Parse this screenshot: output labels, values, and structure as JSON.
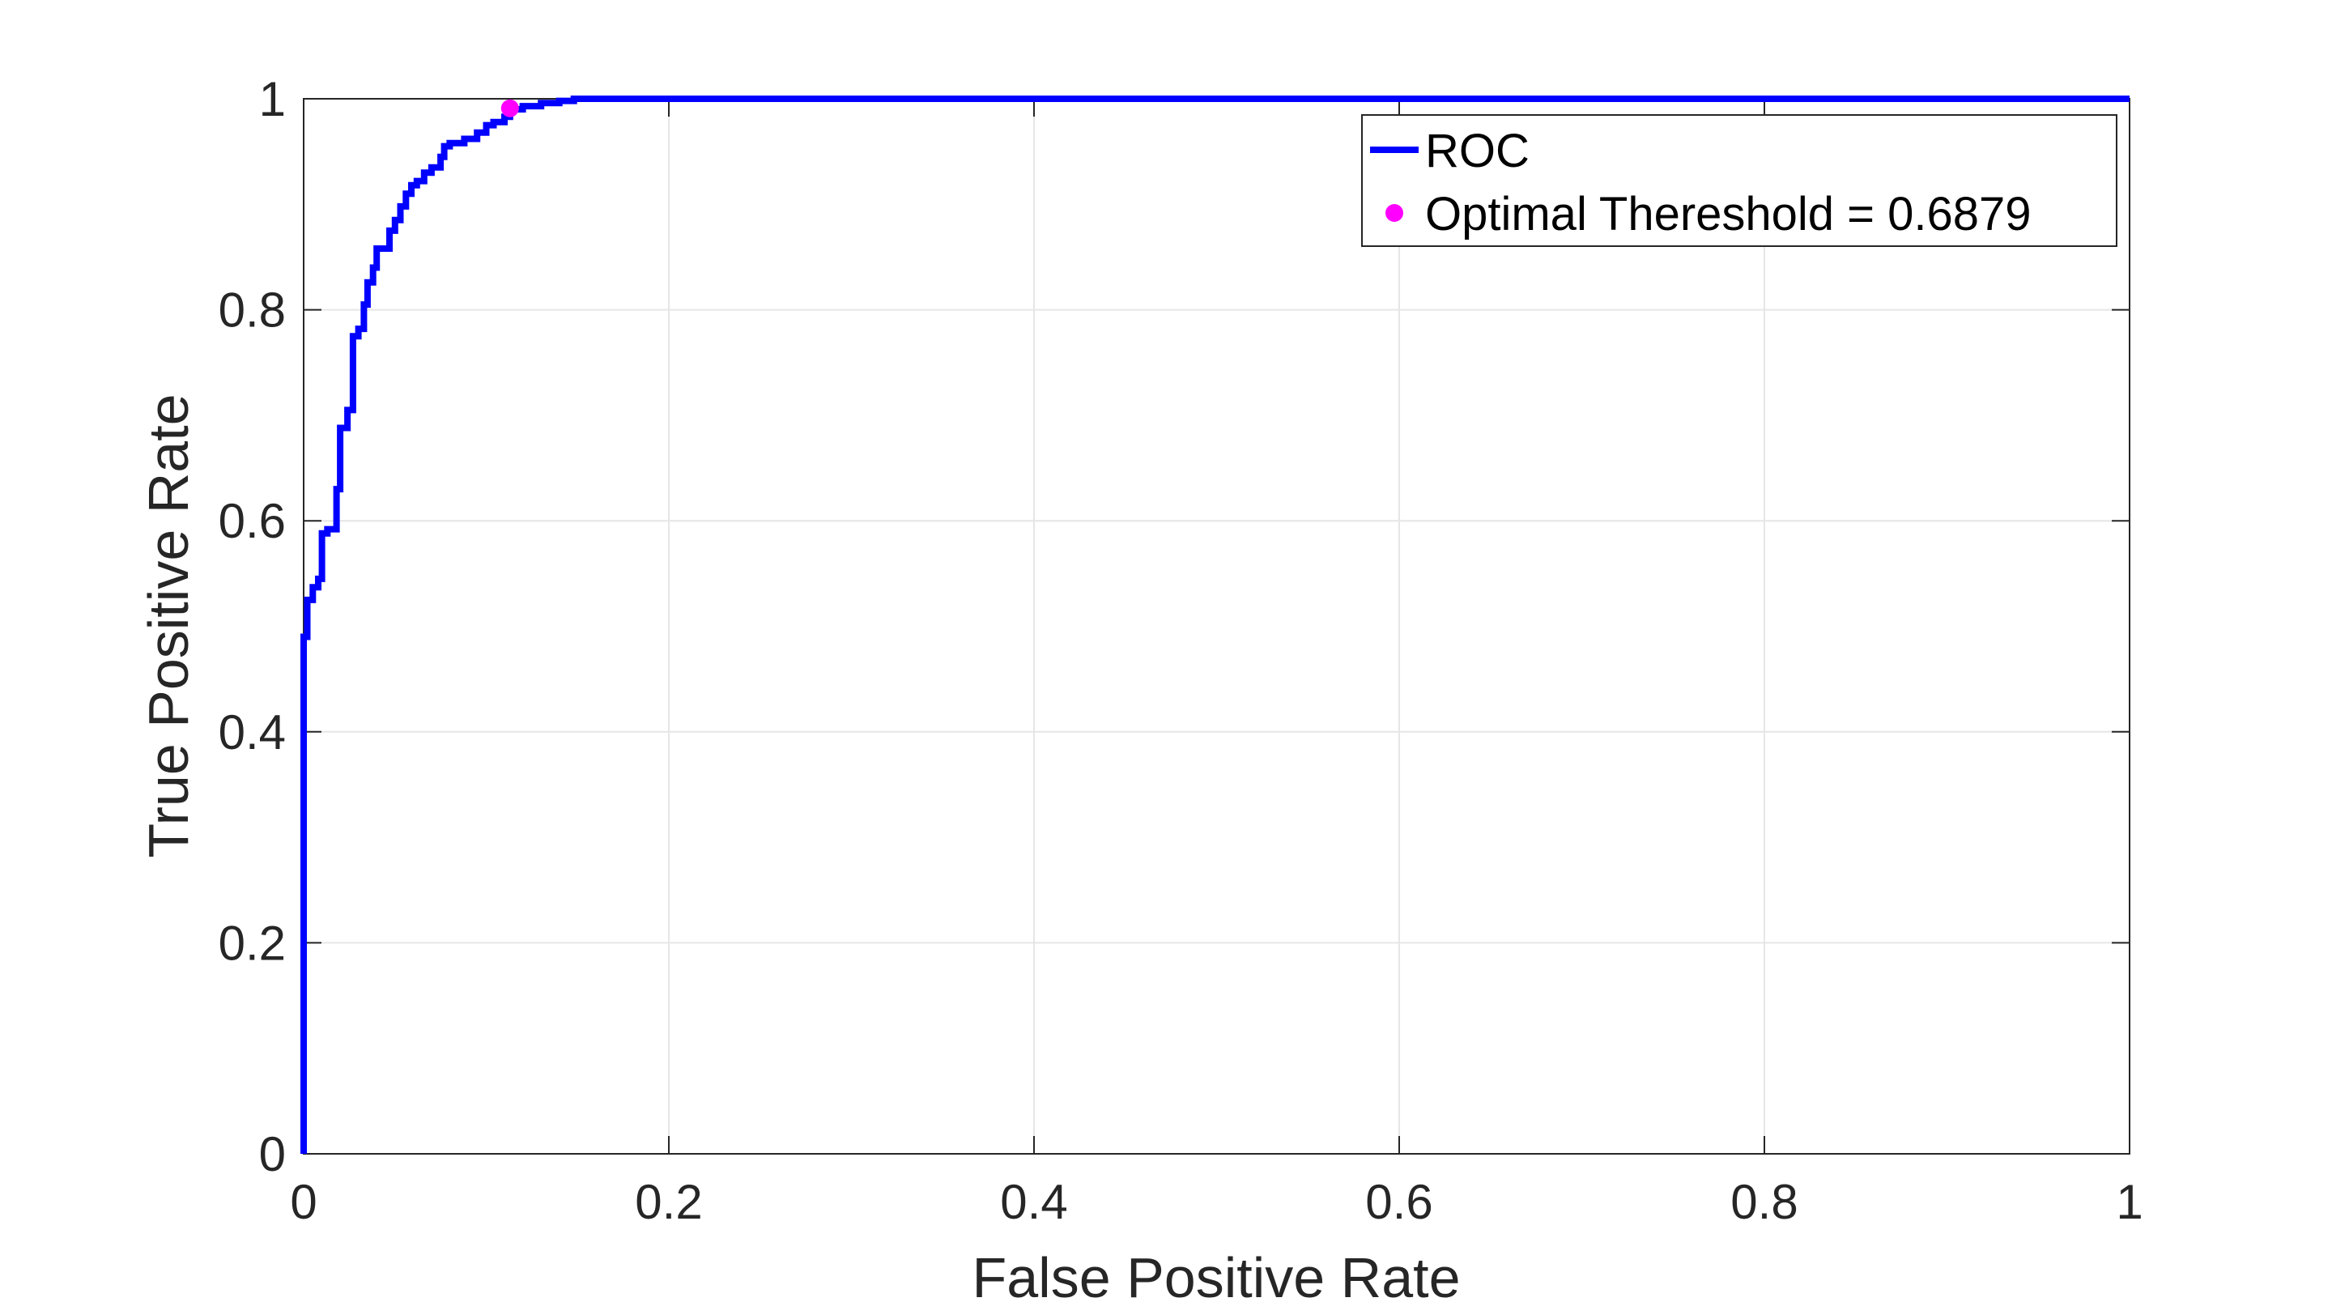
{
  "chart_data": {
    "type": "line",
    "title": "",
    "xlabel": "False Positive Rate",
    "ylabel": "True Positive Rate",
    "xlim": [
      0,
      1
    ],
    "ylim": [
      0,
      1
    ],
    "xticks": [
      0,
      0.2,
      0.4,
      0.6,
      0.8,
      1
    ],
    "yticks": [
      0,
      0.2,
      0.4,
      0.6,
      0.8,
      1
    ],
    "xtick_labels": [
      "0",
      "0.2",
      "0.4",
      "0.6",
      "0.8",
      "1"
    ],
    "ytick_labels": [
      "0",
      "0.2",
      "0.4",
      "0.6",
      "0.8",
      "1"
    ],
    "grid": true,
    "legend_position": "top-right",
    "series": [
      {
        "name": "ROC",
        "color": "#0000ff",
        "x": [
          0,
          0,
          0.002,
          0.002,
          0.005,
          0.005,
          0.008,
          0.008,
          0.01,
          0.01,
          0.013,
          0.013,
          0.018,
          0.018,
          0.02,
          0.02,
          0.024,
          0.024,
          0.027,
          0.027,
          0.03,
          0.03,
          0.033,
          0.033,
          0.035,
          0.035,
          0.038,
          0.038,
          0.04,
          0.04,
          0.047,
          0.047,
          0.05,
          0.05,
          0.053,
          0.053,
          0.056,
          0.056,
          0.059,
          0.059,
          0.062,
          0.062,
          0.066,
          0.066,
          0.07,
          0.07,
          0.075,
          0.075,
          0.077,
          0.077,
          0.08,
          0.08,
          0.088,
          0.088,
          0.095,
          0.095,
          0.1,
          0.1,
          0.104,
          0.104,
          0.11,
          0.11,
          0.113,
          0.113,
          0.12,
          0.12,
          0.13,
          0.13,
          0.14,
          0.14,
          0.148,
          0.148,
          1.0
        ],
        "y": [
          0,
          0.49,
          0.49,
          0.525,
          0.525,
          0.537,
          0.537,
          0.545,
          0.545,
          0.588,
          0.588,
          0.592,
          0.592,
          0.63,
          0.63,
          0.688,
          0.688,
          0.705,
          0.705,
          0.775,
          0.775,
          0.782,
          0.782,
          0.805,
          0.805,
          0.826,
          0.826,
          0.84,
          0.84,
          0.858,
          0.858,
          0.875,
          0.875,
          0.885,
          0.885,
          0.898,
          0.898,
          0.91,
          0.91,
          0.918,
          0.918,
          0.922,
          0.922,
          0.93,
          0.93,
          0.935,
          0.935,
          0.945,
          0.945,
          0.955,
          0.955,
          0.958,
          0.958,
          0.962,
          0.962,
          0.968,
          0.968,
          0.975,
          0.975,
          0.978,
          0.978,
          0.983,
          0.983,
          0.99,
          0.99,
          0.993,
          0.993,
          0.996,
          0.996,
          0.998,
          0.998,
          1.0,
          1.0
        ]
      },
      {
        "name": "Optimal Thereshold = 0.6879",
        "type": "scatter",
        "color": "#ff00ff",
        "x": [
          0.113
        ],
        "y": [
          0.991
        ]
      }
    ]
  }
}
